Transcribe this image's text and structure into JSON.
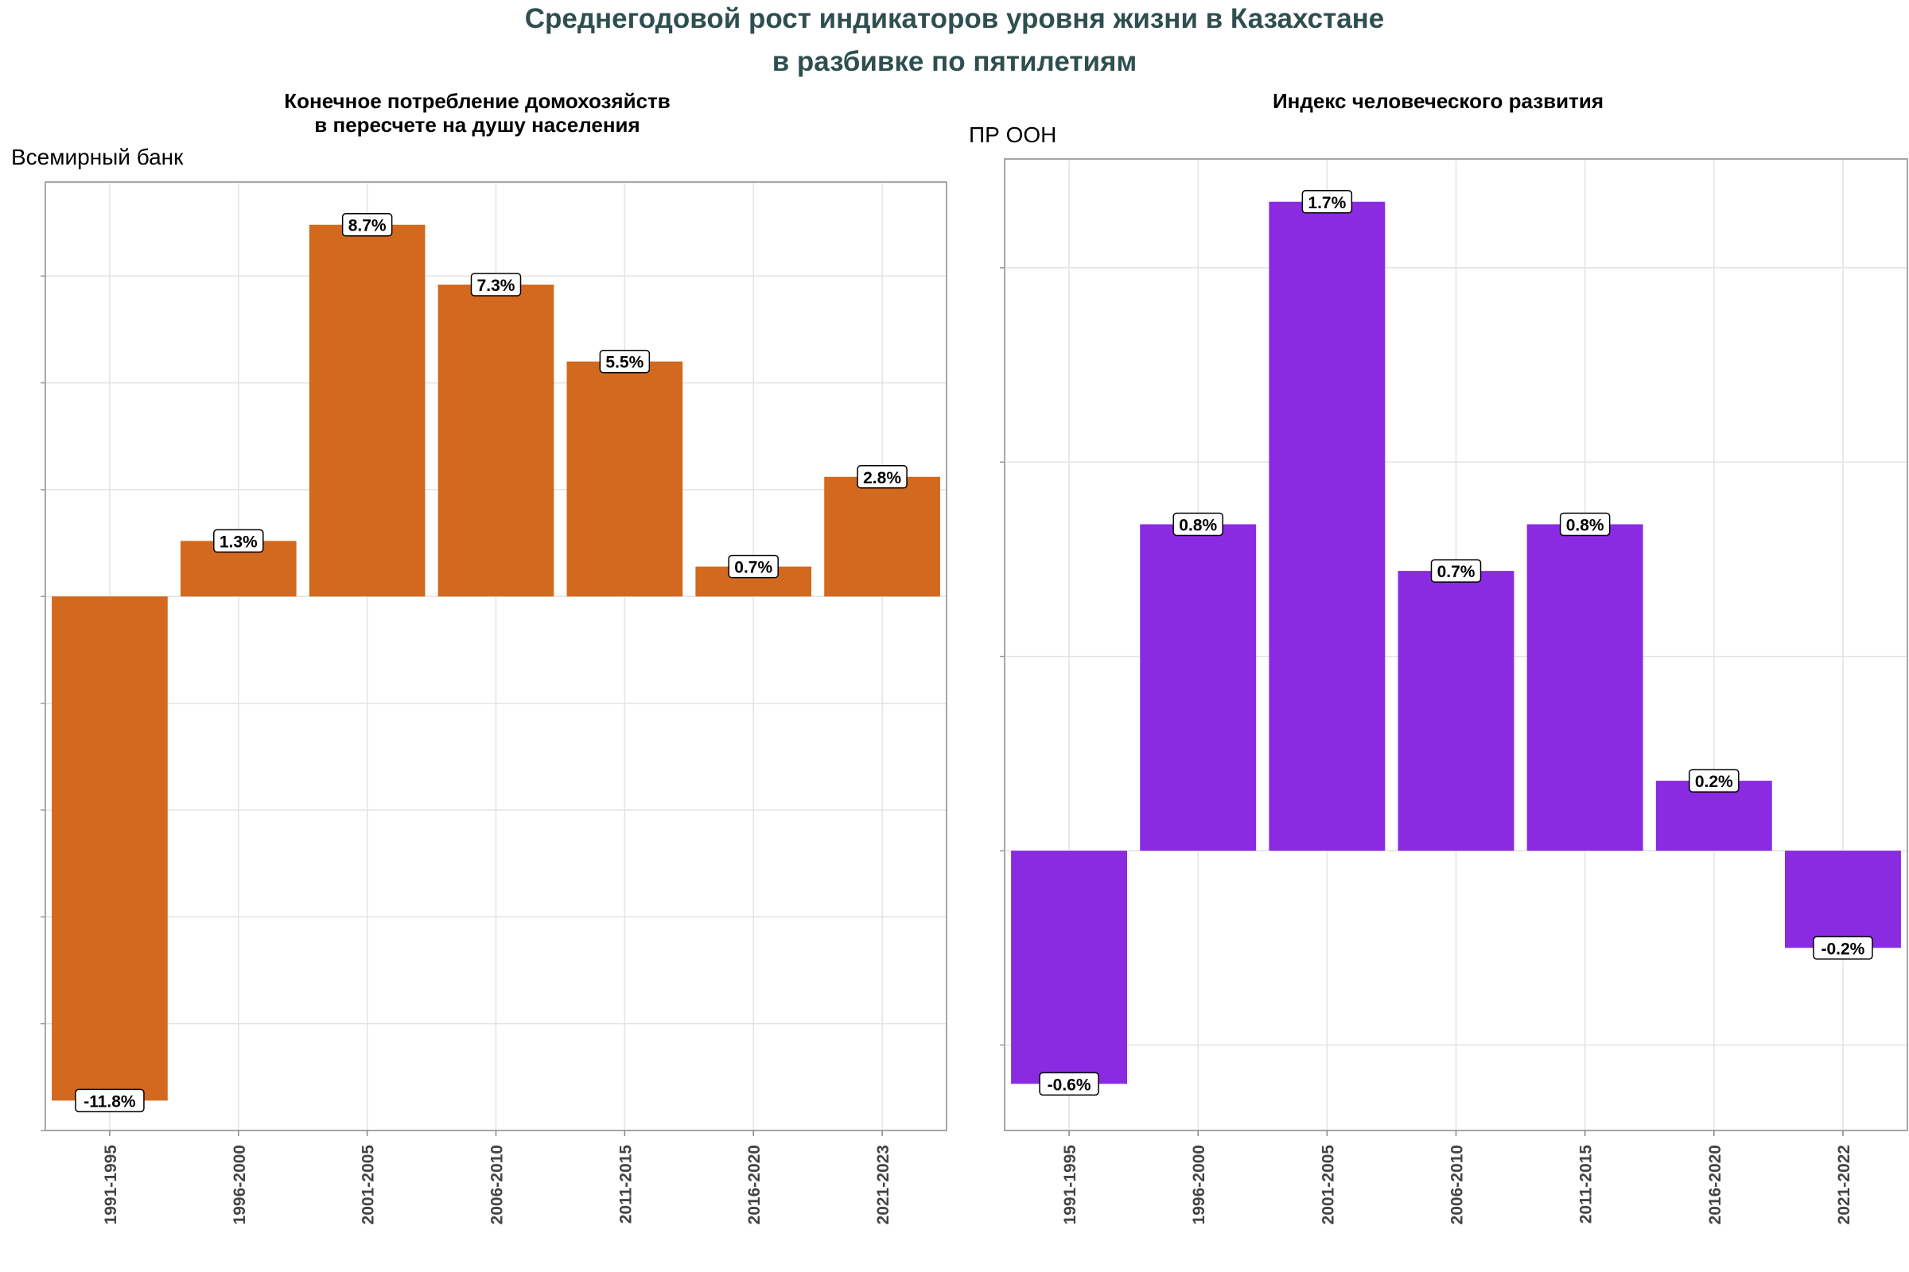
{
  "title_line1": "Среднегодовой рост индикаторов уровня жизни в Казахстане",
  "title_line2": "в разбивке по пятилетиям",
  "chart_data": [
    {
      "type": "bar",
      "title_line1": "Конечное потребление домохозяйств",
      "title_line2": "в пересчете на душу населения",
      "subtitle": "Всемирный банк",
      "categories": [
        "1991-1995",
        "1996-2000",
        "2001-2005",
        "2006-2010",
        "2011-2015",
        "2016-2020",
        "2021-2023"
      ],
      "values": [
        -11.8,
        1.3,
        8.7,
        7.3,
        5.5,
        0.7,
        2.8
      ],
      "labels": [
        "-11.8%",
        "1.3%",
        "8.7%",
        "7.3%",
        "5.5%",
        "0.7%",
        "2.8%"
      ],
      "ylim": [
        -12.5,
        9.7
      ],
      "y_gridlines": [
        -12.5,
        -10,
        -7.5,
        -5,
        -2.5,
        0,
        2.5,
        5,
        7.5
      ],
      "bar_color": "#d2691e",
      "grid": true
    },
    {
      "type": "bar",
      "title_line1": "Индекс человеческого развития",
      "title_line2": "",
      "subtitle": "ПР ООН",
      "categories": [
        "1991-1995",
        "1996-2000",
        "2001-2005",
        "2006-2010",
        "2011-2015",
        "2016-2020",
        "2021-2022"
      ],
      "values": [
        -0.6,
        0.84,
        1.67,
        0.72,
        0.84,
        0.18,
        -0.25
      ],
      "labels": [
        "-0.6%",
        "0.8%",
        "1.7%",
        "0.7%",
        "0.8%",
        "0.2%",
        "-0.2%"
      ],
      "ylim": [
        -0.72,
        1.78
      ],
      "y_gridlines": [
        -0.5,
        0,
        0.5,
        1,
        1.5
      ],
      "bar_color": "#8a2be2",
      "grid": true
    }
  ]
}
